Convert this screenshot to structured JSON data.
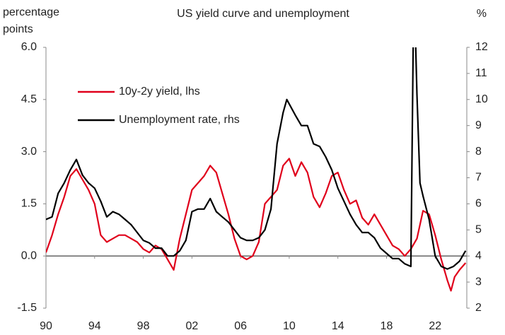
{
  "chart_data": {
    "type": "line",
    "title": "US yield curve and unemployment",
    "ylabel": "percentage points",
    "y2label": "%",
    "xlim": [
      1990,
      2024.6
    ],
    "xticks": [
      {
        "value": 1990,
        "label": "90"
      },
      {
        "value": 1994,
        "label": "94"
      },
      {
        "value": 1998,
        "label": "98"
      },
      {
        "value": 2002,
        "label": "02"
      },
      {
        "value": 2006,
        "label": "06"
      },
      {
        "value": 2010,
        "label": "10"
      },
      {
        "value": 2014,
        "label": "14"
      },
      {
        "value": 2018,
        "label": "18"
      },
      {
        "value": 2022,
        "label": "22"
      }
    ],
    "ylim": [
      -1.5,
      6.0
    ],
    "yticks": [
      {
        "value": 6.0,
        "label": "6.0"
      },
      4.5,
      {
        "value": 3.0,
        "label": "3.0"
      },
      1.5,
      {
        "value": 0.0,
        "label": "0.0"
      },
      -1.5
    ],
    "y2lim": [
      2,
      12
    ],
    "y2ticks": [
      12,
      11,
      10,
      9,
      8,
      7,
      6,
      5,
      4,
      3,
      2
    ],
    "series": [
      {
        "name": "10y-2y yield, lhs",
        "color": "#e0001b",
        "x": [
          1990.0,
          1990.5,
          1991.0,
          1991.5,
          1992.0,
          1992.5,
          1993.0,
          1993.5,
          1994.0,
          1994.5,
          1995.0,
          1995.5,
          1996.0,
          1996.5,
          1997.0,
          1997.5,
          1998.0,
          1998.5,
          1999.0,
          1999.5,
          2000.0,
          2000.5,
          2001.0,
          2001.5,
          2002.0,
          2002.5,
          2003.0,
          2003.5,
          2004.0,
          2004.5,
          2005.0,
          2005.5,
          2006.0,
          2006.5,
          2007.0,
          2007.5,
          2008.0,
          2008.5,
          2009.0,
          2009.5,
          2010.0,
          2010.5,
          2011.0,
          2011.5,
          2012.0,
          2012.5,
          2013.0,
          2013.5,
          2014.0,
          2014.5,
          2015.0,
          2015.5,
          2016.0,
          2016.5,
          2017.0,
          2017.5,
          2018.0,
          2018.5,
          2019.0,
          2019.5,
          2020.0,
          2020.5,
          2021.0,
          2021.5,
          2022.0,
          2022.5,
          2023.0,
          2023.3,
          2023.6,
          2024.0,
          2024.5
        ],
        "values": [
          0.1,
          0.6,
          1.2,
          1.7,
          2.3,
          2.5,
          2.2,
          1.9,
          1.5,
          0.6,
          0.4,
          0.5,
          0.6,
          0.6,
          0.5,
          0.4,
          0.2,
          0.1,
          0.3,
          0.2,
          -0.1,
          -0.4,
          0.5,
          1.2,
          1.9,
          2.1,
          2.3,
          2.6,
          2.4,
          1.8,
          1.2,
          0.5,
          0.0,
          -0.1,
          0.0,
          0.4,
          1.5,
          1.7,
          1.9,
          2.6,
          2.8,
          2.3,
          2.7,
          2.4,
          1.7,
          1.4,
          1.8,
          2.3,
          2.4,
          1.9,
          1.5,
          1.6,
          1.1,
          0.9,
          1.2,
          0.9,
          0.6,
          0.3,
          0.2,
          0.0,
          0.2,
          0.5,
          1.3,
          1.2,
          0.6,
          -0.1,
          -0.7,
          -1.0,
          -0.6,
          -0.4,
          -0.2
        ]
      },
      {
        "name": "Unemployment rate, rhs",
        "color": "#000000",
        "axis": "y2",
        "x": [
          1990.0,
          1990.5,
          1991.0,
          1991.5,
          1992.0,
          1992.5,
          1993.0,
          1993.5,
          1994.0,
          1994.5,
          1995.0,
          1995.5,
          1996.0,
          1996.5,
          1997.0,
          1997.5,
          1998.0,
          1998.5,
          1999.0,
          1999.5,
          2000.0,
          2000.5,
          2001.0,
          2001.5,
          2002.0,
          2002.5,
          2003.0,
          2003.5,
          2004.0,
          2004.5,
          2005.0,
          2005.5,
          2006.0,
          2006.5,
          2007.0,
          2007.5,
          2008.0,
          2008.5,
          2009.0,
          2009.5,
          2009.8,
          2010.5,
          2011.0,
          2011.5,
          2012.0,
          2012.5,
          2013.0,
          2013.5,
          2014.0,
          2014.5,
          2015.0,
          2015.5,
          2016.0,
          2016.5,
          2017.0,
          2017.5,
          2018.0,
          2018.5,
          2019.0,
          2019.5,
          2020.0,
          2020.25,
          2020.5,
          2020.75,
          2021.0,
          2021.5,
          2022.0,
          2022.5,
          2023.0,
          2023.5,
          2024.0,
          2024.5
        ],
        "values": [
          5.4,
          5.5,
          6.4,
          6.8,
          7.3,
          7.7,
          7.1,
          6.8,
          6.6,
          6.1,
          5.5,
          5.7,
          5.6,
          5.4,
          5.2,
          4.9,
          4.6,
          4.5,
          4.3,
          4.3,
          4.0,
          4.0,
          4.2,
          4.6,
          5.7,
          5.8,
          5.8,
          6.2,
          5.7,
          5.5,
          5.3,
          5.0,
          4.7,
          4.6,
          4.6,
          4.7,
          5.0,
          5.8,
          8.3,
          9.5,
          10.0,
          9.4,
          9.0,
          9.0,
          8.3,
          8.2,
          7.8,
          7.3,
          6.6,
          6.1,
          5.6,
          5.2,
          4.9,
          4.9,
          4.7,
          4.3,
          4.1,
          3.9,
          3.9,
          3.7,
          3.6,
          14.7,
          10.2,
          6.8,
          6.3,
          5.4,
          4.0,
          3.6,
          3.5,
          3.6,
          3.8,
          4.2
        ]
      }
    ]
  }
}
